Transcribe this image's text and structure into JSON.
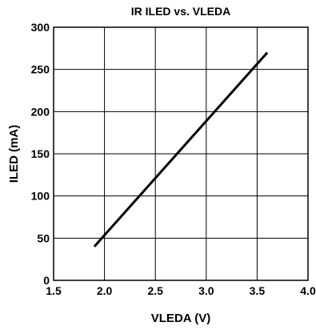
{
  "chart_data": {
    "type": "line",
    "title": "IR ILED vs. VLEDA",
    "xlabel": "VLEDA (V)",
    "ylabel": "ILED (mA)",
    "xlim": [
      1.5,
      4.0
    ],
    "ylim": [
      0,
      300
    ],
    "x_ticks": [
      1.5,
      2.0,
      2.5,
      3.0,
      3.5,
      4.0
    ],
    "x_tick_labels": [
      "1.5",
      "2.0",
      "2.5",
      "3.0",
      "3.5",
      "4.0"
    ],
    "y_ticks": [
      0,
      50,
      100,
      150,
      200,
      250,
      300
    ],
    "y_tick_labels": [
      "0",
      "50",
      "100",
      "150",
      "200",
      "250",
      "300"
    ],
    "grid": true,
    "series": [
      {
        "x": [
          1.9,
          3.6
        ],
        "y": [
          40,
          270
        ],
        "color": "#000000"
      }
    ]
  }
}
